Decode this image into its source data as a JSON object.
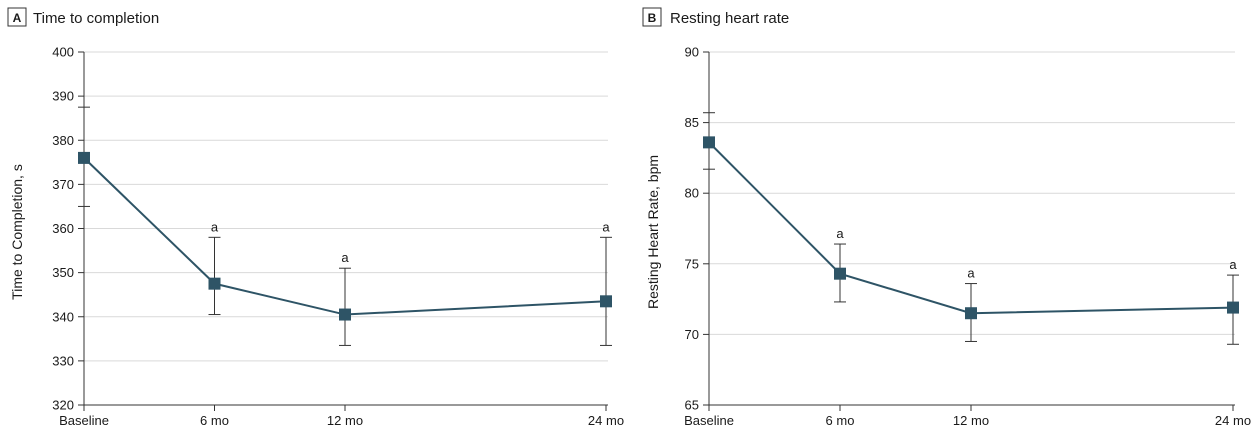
{
  "colors": {
    "series": "#2e5466",
    "grid": "#d9d9d9",
    "axis": "#333333",
    "errorbar": "#333333"
  },
  "chart_data": [
    {
      "type": "line",
      "panel_letter": "A",
      "title": "Time to completion",
      "xlabel": "",
      "ylabel": "Time to Completion, s",
      "categories": [
        "Baseline",
        "6 mo",
        "12 mo",
        "24 mo"
      ],
      "x": [
        0,
        6,
        12,
        24
      ],
      "ylim": [
        320,
        400
      ],
      "yticks": [
        320,
        330,
        340,
        350,
        360,
        370,
        380,
        390,
        400
      ],
      "grid": true,
      "series": [
        {
          "values": [
            376,
            347.5,
            340.5,
            343.5
          ],
          "error_low": [
            365,
            340.5,
            333.5,
            333.5
          ],
          "error_high": [
            387.5,
            358,
            351,
            358
          ],
          "annotations": [
            "",
            "a",
            "a",
            "a"
          ]
        }
      ]
    },
    {
      "type": "line",
      "panel_letter": "B",
      "title": "Resting heart rate",
      "xlabel": "",
      "ylabel": "Resting Heart Rate, bpm",
      "categories": [
        "Baseline",
        "6 mo",
        "12 mo",
        "24 mo"
      ],
      "x": [
        0,
        6,
        12,
        24
      ],
      "ylim": [
        65,
        90
      ],
      "yticks": [
        65,
        70,
        75,
        80,
        85,
        90
      ],
      "grid": true,
      "series": [
        {
          "values": [
            83.6,
            74.3,
            71.5,
            71.9
          ],
          "error_low": [
            81.7,
            72.3,
            69.5,
            69.3
          ],
          "error_high": [
            85.7,
            76.4,
            73.6,
            74.2
          ],
          "annotations": [
            "",
            "a",
            "a",
            "a"
          ]
        }
      ]
    }
  ]
}
